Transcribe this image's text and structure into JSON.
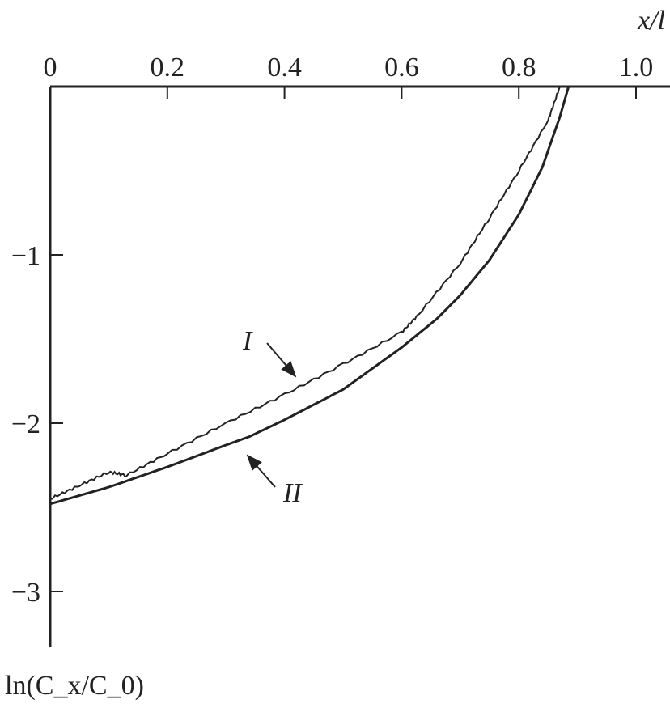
{
  "chart_data": {
    "type": "line",
    "xlabel": "x/l",
    "ylabel": "ln(C_x/C_0)",
    "xlim": [
      0,
      1.05
    ],
    "ylim": [
      -3.4,
      0
    ],
    "x_axis_position": "top",
    "grid": false,
    "x_ticks": [
      0,
      0.2,
      0.4,
      0.6,
      0.8,
      1.0
    ],
    "x_tick_labels": [
      "0",
      "0.2",
      "0.4",
      "0.6",
      "0.8",
      "1.0"
    ],
    "y_ticks": [
      -1,
      -2,
      -3
    ],
    "y_tick_labels": [
      "−1",
      "−2",
      "−3"
    ],
    "color": "#222222",
    "series": [
      {
        "name": "I",
        "x": [
          0,
          0.05,
          0.1,
          0.13,
          0.2,
          0.3,
          0.4,
          0.5,
          0.6,
          0.63,
          0.7,
          0.75,
          0.8,
          0.85,
          0.87
        ],
        "y": [
          -2.45,
          -2.37,
          -2.29,
          -2.31,
          -2.18,
          -2.0,
          -1.83,
          -1.65,
          -1.46,
          -1.35,
          -1.05,
          -0.78,
          -0.5,
          -0.2,
          0
        ]
      },
      {
        "name": "II",
        "x": [
          0,
          0.1,
          0.2,
          0.3,
          0.34,
          0.4,
          0.5,
          0.6,
          0.66,
          0.7,
          0.75,
          0.8,
          0.84,
          0.87,
          0.885
        ],
        "y": [
          -2.48,
          -2.38,
          -2.26,
          -2.13,
          -2.08,
          -1.98,
          -1.8,
          -1.55,
          -1.38,
          -1.24,
          -1.03,
          -0.76,
          -0.48,
          -0.18,
          0
        ]
      }
    ],
    "annotations": [
      "I",
      "II"
    ]
  }
}
